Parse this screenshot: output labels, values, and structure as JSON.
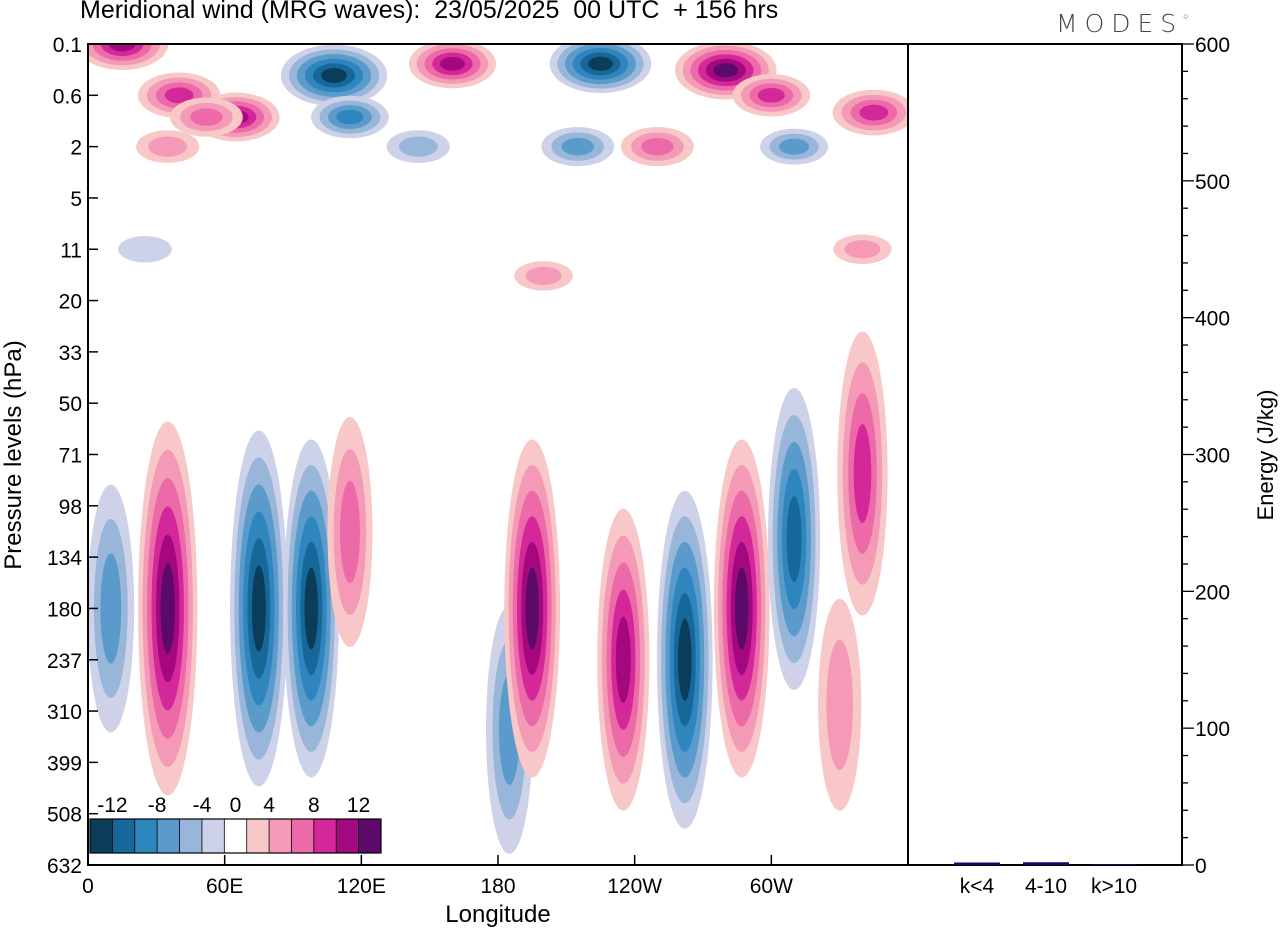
{
  "title": "Meridional wind (MRG waves):  23/05/2025  00 UTC  + 156 hrs",
  "logo": "MODES",
  "colors": {
    "neg": [
      "#0b3c5a",
      "#17689a",
      "#2f86bf",
      "#5a9bcb",
      "#97b6d9",
      "#cdd2e8"
    ],
    "zero": "#ffffff",
    "pos": [
      "#f8c8c8",
      "#f49ab6",
      "#ec6aa8",
      "#d4279a",
      "#a3087f",
      "#5c0a69"
    ]
  },
  "chart_data": [
    {
      "type": "heatmap",
      "title": "Meridional wind (MRG waves):  23/05/2025  00 UTC  + 156 hrs",
      "xlabel": "Longitude",
      "ylabel": "Pressure levels (hPa)",
      "x_ticks": [
        "0",
        "60E",
        "120E",
        "180",
        "120W",
        "60W"
      ],
      "y_ticks": [
        "0.1",
        "0.6",
        "2",
        "5",
        "11",
        "20",
        "33",
        "50",
        "71",
        "98",
        "134",
        "180",
        "237",
        "310",
        "399",
        "508",
        "632"
      ],
      "colorbar_labels": [
        "-12",
        "-8",
        "-4",
        "0",
        "4",
        "8",
        "12"
      ],
      "colorbar_levels": [
        -14,
        -12,
        -10,
        -8,
        -6,
        -4,
        -2,
        2,
        4,
        6,
        8,
        10,
        12,
        14
      ],
      "features": [
        {
          "lon": 15,
          "level": "0.1",
          "value": 10
        },
        {
          "lon": 40,
          "level": "0.6",
          "value": 8
        },
        {
          "lon": 65,
          "level": "1",
          "value": 9
        },
        {
          "lon": 52,
          "level": "1",
          "value": 6
        },
        {
          "lon": 35,
          "level": "2",
          "value": 4
        },
        {
          "lon": 108,
          "level": "0.3",
          "value": -13
        },
        {
          "lon": 115,
          "level": "1",
          "value": -7
        },
        {
          "lon": 160,
          "level": "0.2",
          "value": 9
        },
        {
          "lon": 225,
          "level": "0.2",
          "value": -12
        },
        {
          "lon": 280,
          "level": "0.25",
          "value": 12
        },
        {
          "lon": 300,
          "level": "0.6",
          "value": 7
        },
        {
          "lon": 345,
          "level": "0.9",
          "value": 8
        },
        {
          "lon": 145,
          "level": "2",
          "value": -4
        },
        {
          "lon": 215,
          "level": "2",
          "value": -6
        },
        {
          "lon": 250,
          "level": "2",
          "value": 6
        },
        {
          "lon": 310,
          "level": "2",
          "value": -5
        },
        {
          "lon": 340,
          "level": "11",
          "value": 3
        },
        {
          "lon": 200,
          "level": "15",
          "value": 3
        },
        {
          "lon": 25,
          "level": "11",
          "value": -2
        },
        {
          "lon": 10,
          "level": "180",
          "value": -6
        },
        {
          "lon": 35,
          "level": "180",
          "value": 13
        },
        {
          "lon": 75,
          "level": "180",
          "value": -12
        },
        {
          "lon": 98,
          "level": "180",
          "value": -11
        },
        {
          "lon": 115,
          "level": "115",
          "value": 5
        },
        {
          "lon": 185,
          "level": "340",
          "value": -6
        },
        {
          "lon": 195,
          "level": "180",
          "value": 11
        },
        {
          "lon": 235,
          "level": "237",
          "value": 9
        },
        {
          "lon": 262,
          "level": "237",
          "value": -11
        },
        {
          "lon": 287,
          "level": "180",
          "value": 11
        },
        {
          "lon": 310,
          "level": "120",
          "value": -9
        },
        {
          "lon": 340,
          "level": "80",
          "value": 8
        },
        {
          "lon": 330,
          "level": "300",
          "value": 4
        }
      ]
    },
    {
      "type": "bar",
      "ylabel": "Energy (J/kg)",
      "categories": [
        "k<4",
        "4-10",
        "k>10"
      ],
      "values": [
        0.5,
        2,
        0
      ],
      "ylim": [
        0,
        600
      ],
      "y_ticks": [
        "0",
        "100",
        "200",
        "300",
        "400",
        "500",
        "600"
      ],
      "bar_color": "#0a0a6e"
    }
  ]
}
